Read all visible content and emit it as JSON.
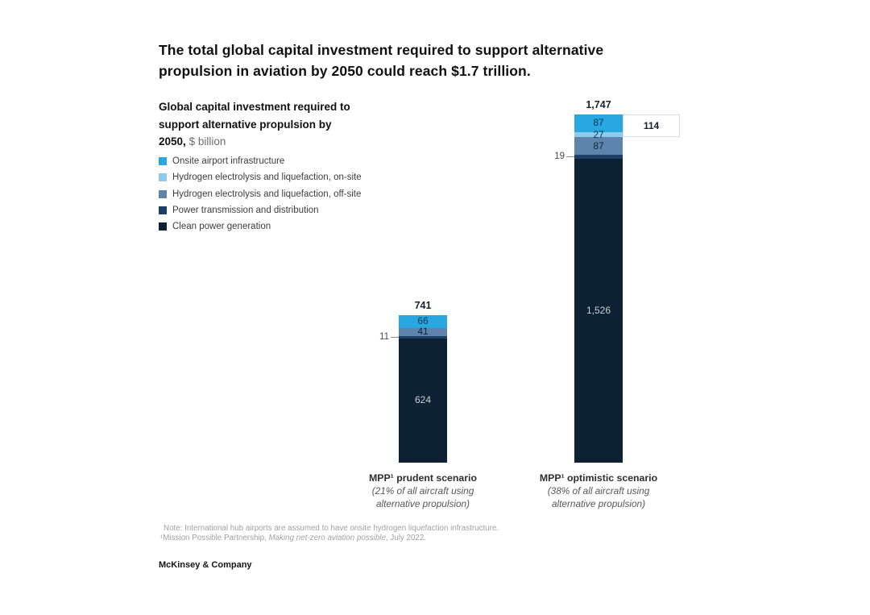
{
  "title": "The total global capital investment required to support alternative propulsion in aviation by 2050 could reach $1.7 trillion.",
  "subtitle": {
    "bold": "Global capital investment required to support alternative propulsion by 2050,",
    "unit": "$ billion"
  },
  "note": {
    "line1": "Note: International hub airports are assumed to have onsite hydrogen liquefaction infrastructure.",
    "source_prefix": "¹Mission Possible Partnership, ",
    "source_italic": "Making net-zero aviation possible",
    "source_suffix": ", July 2022."
  },
  "footer": {
    "brand": "McKinsey & Company"
  },
  "chart_data": {
    "type": "bar",
    "stacked": true,
    "unit": "$ billion",
    "grid": false,
    "axes_shown": false,
    "legend_position": "top-left",
    "categories": [
      {
        "label": "MPP¹ prudent scenario",
        "sublabel": "(21% of all aircraft using\nalternative propulsion)",
        "total": "741"
      },
      {
        "label": "MPP¹ optimistic scenario",
        "sublabel": "(38% of all aircraft using\nalternative propulsion)",
        "total": "1,747"
      }
    ],
    "series": [
      {
        "key": "onsite-airport-infrastructure",
        "name": "Onsite airport infrastructure",
        "color": "#29A7E0",
        "label_color": "#123551",
        "label_position": "inside",
        "values": [
          66,
          87
        ]
      },
      {
        "key": "hydrogen-electrolysis-on-site",
        "name": "Hydrogen electrolysis and liquefaction, on-site",
        "color": "#8FCAEC",
        "label_color": "#123551",
        "label_position": "inside",
        "values": [
          0,
          27
        ]
      },
      {
        "key": "hydrogen-electrolysis-off-site",
        "name": "Hydrogen electrolysis and liquefaction, off-site",
        "color": "#5E84AE",
        "label_color": "#0E2438",
        "label_position": "inside",
        "values": [
          41,
          87
        ]
      },
      {
        "key": "power-transmission-distribution",
        "name": "Power transmission and distribution",
        "color": "#1C3F63",
        "label_color": "#4a4a4a",
        "label_position": "outside-left",
        "values": [
          11,
          19
        ]
      },
      {
        "key": "clean-power-generation",
        "name": "Clean power generation",
        "color": "#0C2133",
        "label_color": "#C9D1D8",
        "label_position": "inside",
        "values": [
          624,
          1526
        ]
      }
    ],
    "callout": {
      "value": "114",
      "bar_index": 1,
      "top_series_count": 2,
      "meaning": "sum of top two segments (87 + 27)"
    }
  }
}
